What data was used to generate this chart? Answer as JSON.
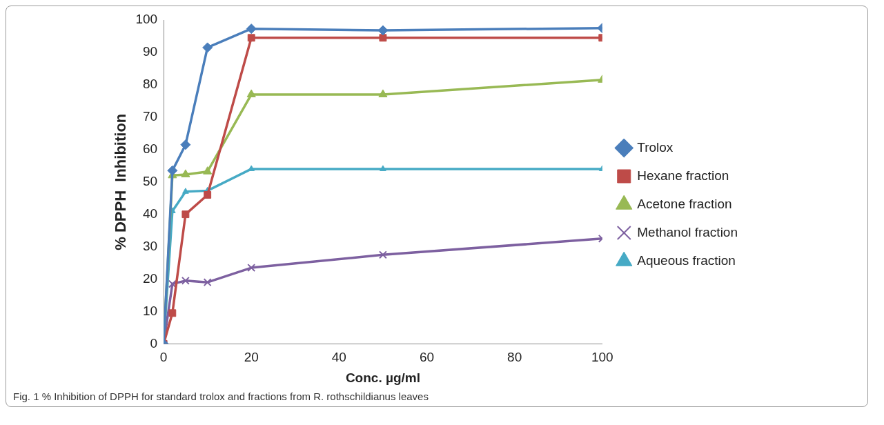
{
  "chart_data": {
    "type": "line",
    "xlabel": "Conc. µg/ml",
    "ylabel": "% DPPH  Inhibition",
    "annotations": [
      "Fig. 1 % Inhibition of DPPH for standard trolox and fractions from R. rothschildianus leaves"
    ],
    "x": [
      0,
      2,
      5,
      10,
      20,
      50,
      100
    ],
    "xlim": [
      0,
      100
    ],
    "xticks": [
      0,
      20,
      40,
      60,
      80,
      100
    ],
    "ylim": [
      0,
      100
    ],
    "yticks": [
      0,
      10,
      20,
      30,
      40,
      50,
      60,
      70,
      80,
      90,
      100
    ],
    "grid": false,
    "legend": "right",
    "line_style": "solid",
    "series": [
      {
        "name": "Trolox",
        "color": "#4a7ebb",
        "marker": "diamond",
        "values": [
          0,
          53.5,
          61.5,
          91.5,
          97.3,
          96.8,
          97.5
        ]
      },
      {
        "name": "Hexane fraction",
        "color": "#be4b48",
        "marker": "square",
        "values": [
          0,
          9.5,
          40,
          46,
          94.5,
          94.5,
          94.5
        ]
      },
      {
        "name": "Acetone fraction",
        "color": "#98b954",
        "marker": "triangle",
        "values": [
          0,
          52,
          52.3,
          53.2,
          77,
          77,
          81.5
        ]
      },
      {
        "name": "Methanol fraction",
        "color": "#7d60a0",
        "marker": "cross",
        "values": [
          0,
          18.5,
          19.5,
          19,
          23.5,
          27.5,
          32.5
        ]
      },
      {
        "name": "Aqueous fraction",
        "color": "#46aac5",
        "marker": "triangle",
        "values": [
          0,
          41,
          47,
          47.3,
          54,
          54,
          54
        ]
      }
    ]
  }
}
